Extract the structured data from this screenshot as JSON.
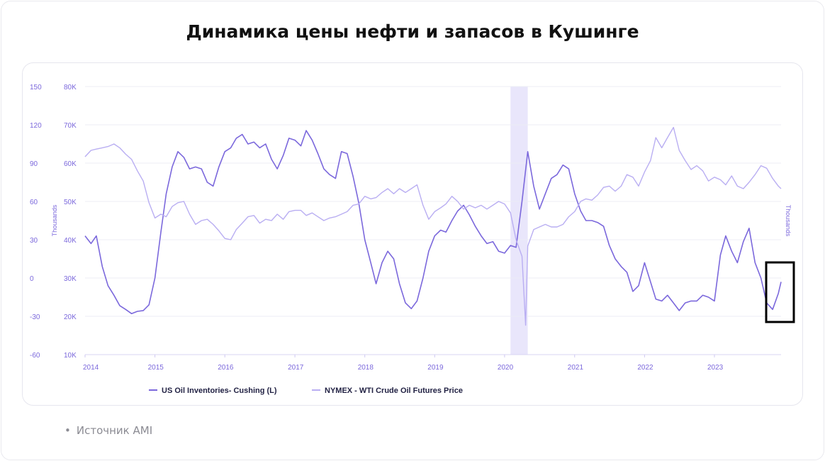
{
  "page_title": "Динамика цены нефти и запасов в Кушинге",
  "source_text": "Источник AMI",
  "colors": {
    "inventories": "#7b68dc",
    "price": "#b9aef2",
    "axis_text": "#7b68dc",
    "grid": "#ececf4",
    "highlight": "#e9e6fb"
  },
  "chart_data": {
    "type": "line",
    "title": "Динамика цены нефти и запасов в Кушинге",
    "x_ticks": [
      "2014",
      "2015",
      "2016",
      "2017",
      "2018",
      "2019",
      "2020",
      "2021",
      "2022",
      "2023"
    ],
    "xlim": [
      "2014-01-01",
      "2023-12-15"
    ],
    "y_left": {
      "ticks": [
        150,
        120,
        90,
        60,
        30,
        0,
        -30,
        -60
      ],
      "lim": [
        -60,
        150
      ]
    },
    "y_right": {
      "label": "Thousands",
      "ticks": [
        "80K",
        "70K",
        "60K",
        "50K",
        "40K",
        "30K",
        "20K",
        "10K"
      ],
      "lim": [
        10000,
        80000
      ]
    },
    "y_right_outer_label": "Thousands",
    "highlight_band": [
      "2020-02-01",
      "2020-05-01"
    ],
    "marked_region": [
      "2023-10-01",
      "2023-12-15"
    ],
    "legend_position": "bottom-left",
    "grid": true,
    "series": [
      {
        "name": "US Oil Inventories- Cushing (L)",
        "axis": "right",
        "points": [
          [
            "2014-01-01",
            41000
          ],
          [
            "2014-02-01",
            39000
          ],
          [
            "2014-03-01",
            41000
          ],
          [
            "2014-04-01",
            33000
          ],
          [
            "2014-05-01",
            28000
          ],
          [
            "2014-06-01",
            25500
          ],
          [
            "2014-07-01",
            22800
          ],
          [
            "2014-08-01",
            21800
          ],
          [
            "2014-09-01",
            20700
          ],
          [
            "2014-10-01",
            21300
          ],
          [
            "2014-11-01",
            21500
          ],
          [
            "2014-12-01",
            23000
          ],
          [
            "2015-01-01",
            30000
          ],
          [
            "2015-02-01",
            42000
          ],
          [
            "2015-03-01",
            52000
          ],
          [
            "2015-04-01",
            59000
          ],
          [
            "2015-05-01",
            63000
          ],
          [
            "2015-06-01",
            61500
          ],
          [
            "2015-07-01",
            58500
          ],
          [
            "2015-08-01",
            59000
          ],
          [
            "2015-09-01",
            58500
          ],
          [
            "2015-10-01",
            55000
          ],
          [
            "2015-11-01",
            54000
          ],
          [
            "2015-12-01",
            59000
          ],
          [
            "2016-01-01",
            63000
          ],
          [
            "2016-02-01",
            64000
          ],
          [
            "2016-03-01",
            66500
          ],
          [
            "2016-04-01",
            67500
          ],
          [
            "2016-05-01",
            65000
          ],
          [
            "2016-06-01",
            65500
          ],
          [
            "2016-07-01",
            64000
          ],
          [
            "2016-08-01",
            65000
          ],
          [
            "2016-09-01",
            61000
          ],
          [
            "2016-10-01",
            58500
          ],
          [
            "2016-11-01",
            62000
          ],
          [
            "2016-12-01",
            66500
          ],
          [
            "2017-01-01",
            66000
          ],
          [
            "2017-02-01",
            64500
          ],
          [
            "2017-03-01",
            68500
          ],
          [
            "2017-04-01",
            66000
          ],
          [
            "2017-05-01",
            62500
          ],
          [
            "2017-06-01",
            58500
          ],
          [
            "2017-07-01",
            57000
          ],
          [
            "2017-08-01",
            56000
          ],
          [
            "2017-09-01",
            63000
          ],
          [
            "2017-10-01",
            62500
          ],
          [
            "2017-11-01",
            56500
          ],
          [
            "2017-12-01",
            49500
          ],
          [
            "2018-01-01",
            40000
          ],
          [
            "2018-02-01",
            34000
          ],
          [
            "2018-03-01",
            28500
          ],
          [
            "2018-04-01",
            34000
          ],
          [
            "2018-05-01",
            37000
          ],
          [
            "2018-06-01",
            35000
          ],
          [
            "2018-07-01",
            28500
          ],
          [
            "2018-08-01",
            23500
          ],
          [
            "2018-09-01",
            22000
          ],
          [
            "2018-10-01",
            24000
          ],
          [
            "2018-11-01",
            30000
          ],
          [
            "2018-12-01",
            37000
          ],
          [
            "2019-01-01",
            41000
          ],
          [
            "2019-02-01",
            42500
          ],
          [
            "2019-03-01",
            42000
          ],
          [
            "2019-04-01",
            45000
          ],
          [
            "2019-05-01",
            47500
          ],
          [
            "2019-06-01",
            49000
          ],
          [
            "2019-07-01",
            46500
          ],
          [
            "2019-08-01",
            43500
          ],
          [
            "2019-09-01",
            41000
          ],
          [
            "2019-10-01",
            39000
          ],
          [
            "2019-11-01",
            39500
          ],
          [
            "2019-12-01",
            37000
          ],
          [
            "2020-01-01",
            36500
          ],
          [
            "2020-02-01",
            38500
          ],
          [
            "2020-03-01",
            38000
          ],
          [
            "2020-04-01",
            50000
          ],
          [
            "2020-05-01",
            63000
          ],
          [
            "2020-06-01",
            54000
          ],
          [
            "2020-07-01",
            48000
          ],
          [
            "2020-08-01",
            52000
          ],
          [
            "2020-09-01",
            56000
          ],
          [
            "2020-10-01",
            57000
          ],
          [
            "2020-11-01",
            59500
          ],
          [
            "2020-12-01",
            58500
          ],
          [
            "2021-01-01",
            52000
          ],
          [
            "2021-02-01",
            47500
          ],
          [
            "2021-03-01",
            45000
          ],
          [
            "2021-04-01",
            45000
          ],
          [
            "2021-05-01",
            44500
          ],
          [
            "2021-06-01",
            43500
          ],
          [
            "2021-07-01",
            38500
          ],
          [
            "2021-08-01",
            35000
          ],
          [
            "2021-09-01",
            33000
          ],
          [
            "2021-10-01",
            31500
          ],
          [
            "2021-11-01",
            26500
          ],
          [
            "2021-12-01",
            28000
          ],
          [
            "2022-01-01",
            34000
          ],
          [
            "2022-02-01",
            29000
          ],
          [
            "2022-03-01",
            24500
          ],
          [
            "2022-04-01",
            24000
          ],
          [
            "2022-05-01",
            25500
          ],
          [
            "2022-06-01",
            23500
          ],
          [
            "2022-07-01",
            21500
          ],
          [
            "2022-08-01",
            23500
          ],
          [
            "2022-09-01",
            24000
          ],
          [
            "2022-10-01",
            24000
          ],
          [
            "2022-11-01",
            25500
          ],
          [
            "2022-12-01",
            25000
          ],
          [
            "2023-01-01",
            24000
          ],
          [
            "2023-02-01",
            36000
          ],
          [
            "2023-03-01",
            41000
          ],
          [
            "2023-04-01",
            37000
          ],
          [
            "2023-05-01",
            34000
          ],
          [
            "2023-06-01",
            39500
          ],
          [
            "2023-07-01",
            43000
          ],
          [
            "2023-08-01",
            34000
          ],
          [
            "2023-09-01",
            30000
          ],
          [
            "2023-10-01",
            23500
          ],
          [
            "2023-11-01",
            21800
          ],
          [
            "2023-12-01",
            26000
          ],
          [
            "2023-12-15",
            29000
          ]
        ]
      },
      {
        "name": "NYMEX - WTI Crude Oil Futures Price",
        "axis": "left",
        "points": [
          [
            "2014-01-01",
            95
          ],
          [
            "2014-02-01",
            100
          ],
          [
            "2014-03-01",
            101
          ],
          [
            "2014-04-01",
            102
          ],
          [
            "2014-05-01",
            103
          ],
          [
            "2014-06-01",
            105
          ],
          [
            "2014-07-01",
            102
          ],
          [
            "2014-08-01",
            97
          ],
          [
            "2014-09-01",
            93
          ],
          [
            "2014-10-01",
            84
          ],
          [
            "2014-11-01",
            76
          ],
          [
            "2014-12-01",
            59
          ],
          [
            "2015-01-01",
            47
          ],
          [
            "2015-02-01",
            50
          ],
          [
            "2015-03-01",
            48
          ],
          [
            "2015-04-01",
            56
          ],
          [
            "2015-05-01",
            59
          ],
          [
            "2015-06-01",
            60
          ],
          [
            "2015-07-01",
            50
          ],
          [
            "2015-08-01",
            42
          ],
          [
            "2015-09-01",
            45
          ],
          [
            "2015-10-01",
            46
          ],
          [
            "2015-11-01",
            42
          ],
          [
            "2015-12-01",
            37
          ],
          [
            "2016-01-01",
            31
          ],
          [
            "2016-02-01",
            30
          ],
          [
            "2016-03-01",
            38
          ],
          [
            "2016-04-01",
            43
          ],
          [
            "2016-05-01",
            48
          ],
          [
            "2016-06-01",
            49
          ],
          [
            "2016-07-01",
            43
          ],
          [
            "2016-08-01",
            46
          ],
          [
            "2016-09-01",
            45
          ],
          [
            "2016-10-01",
            50
          ],
          [
            "2016-11-01",
            46
          ],
          [
            "2016-12-01",
            52
          ],
          [
            "2017-01-01",
            53
          ],
          [
            "2017-02-01",
            53
          ],
          [
            "2017-03-01",
            49
          ],
          [
            "2017-04-01",
            51
          ],
          [
            "2017-05-01",
            48
          ],
          [
            "2017-06-01",
            45
          ],
          [
            "2017-07-01",
            47
          ],
          [
            "2017-08-01",
            48
          ],
          [
            "2017-09-01",
            50
          ],
          [
            "2017-10-01",
            52
          ],
          [
            "2017-11-01",
            57
          ],
          [
            "2017-12-01",
            58
          ],
          [
            "2018-01-01",
            64
          ],
          [
            "2018-02-01",
            62
          ],
          [
            "2018-03-01",
            63
          ],
          [
            "2018-04-01",
            67
          ],
          [
            "2018-05-01",
            70
          ],
          [
            "2018-06-01",
            66
          ],
          [
            "2018-07-01",
            70
          ],
          [
            "2018-08-01",
            67
          ],
          [
            "2018-09-01",
            70
          ],
          [
            "2018-10-01",
            73
          ],
          [
            "2018-11-01",
            57
          ],
          [
            "2018-12-01",
            46
          ],
          [
            "2019-01-01",
            52
          ],
          [
            "2019-02-01",
            55
          ],
          [
            "2019-03-01",
            58
          ],
          [
            "2019-04-01",
            64
          ],
          [
            "2019-05-01",
            60
          ],
          [
            "2019-06-01",
            54
          ],
          [
            "2019-07-01",
            57
          ],
          [
            "2019-08-01",
            55
          ],
          [
            "2019-09-01",
            57
          ],
          [
            "2019-10-01",
            54
          ],
          [
            "2019-11-01",
            57
          ],
          [
            "2019-12-01",
            60
          ],
          [
            "2020-01-01",
            58
          ],
          [
            "2020-02-01",
            51
          ],
          [
            "2020-03-01",
            30
          ],
          [
            "2020-04-01",
            17
          ],
          [
            "2020-04-20",
            -37
          ],
          [
            "2020-05-01",
            25
          ],
          [
            "2020-06-01",
            38
          ],
          [
            "2020-07-01",
            40
          ],
          [
            "2020-08-01",
            42
          ],
          [
            "2020-09-01",
            40
          ],
          [
            "2020-10-01",
            40
          ],
          [
            "2020-11-01",
            42
          ],
          [
            "2020-12-01",
            48
          ],
          [
            "2021-01-01",
            52
          ],
          [
            "2021-02-01",
            60
          ],
          [
            "2021-03-01",
            62
          ],
          [
            "2021-04-01",
            61
          ],
          [
            "2021-05-01",
            65
          ],
          [
            "2021-06-01",
            71
          ],
          [
            "2021-07-01",
            72
          ],
          [
            "2021-08-01",
            68
          ],
          [
            "2021-09-01",
            72
          ],
          [
            "2021-10-01",
            81
          ],
          [
            "2021-11-01",
            79
          ],
          [
            "2021-12-01",
            72
          ],
          [
            "2022-01-01",
            83
          ],
          [
            "2022-02-01",
            92
          ],
          [
            "2022-03-01",
            110
          ],
          [
            "2022-04-01",
            102
          ],
          [
            "2022-05-01",
            110
          ],
          [
            "2022-06-01",
            118
          ],
          [
            "2022-07-01",
            100
          ],
          [
            "2022-08-01",
            92
          ],
          [
            "2022-09-01",
            85
          ],
          [
            "2022-10-01",
            88
          ],
          [
            "2022-11-01",
            84
          ],
          [
            "2022-12-01",
            76
          ],
          [
            "2023-01-01",
            79
          ],
          [
            "2023-02-01",
            77
          ],
          [
            "2023-03-01",
            73
          ],
          [
            "2023-04-01",
            80
          ],
          [
            "2023-05-01",
            72
          ],
          [
            "2023-06-01",
            70
          ],
          [
            "2023-07-01",
            75
          ],
          [
            "2023-08-01",
            81
          ],
          [
            "2023-09-01",
            88
          ],
          [
            "2023-10-01",
            86
          ],
          [
            "2023-11-01",
            78
          ],
          [
            "2023-12-01",
            72
          ],
          [
            "2023-12-15",
            70
          ]
        ]
      }
    ]
  }
}
